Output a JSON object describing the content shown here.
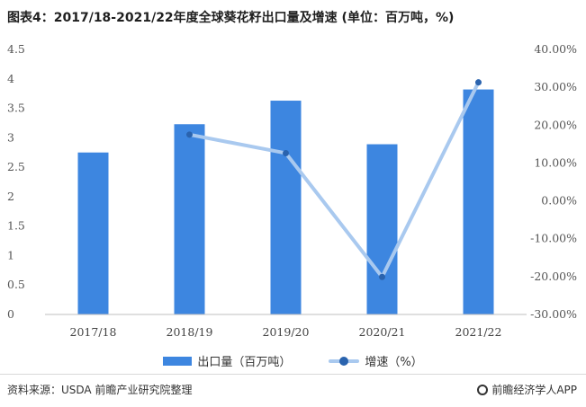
{
  "title": "图表4：2017/18-2021/22年度全球葵花籽出口量及增速 (单位：百万吨，%)",
  "chart_data": {
    "type": "bar",
    "categories": [
      "2017/18",
      "2018/19",
      "2019/20",
      "2020/21",
      "2021/22"
    ],
    "series": [
      {
        "name": "出口量（百万吨）",
        "type": "bar",
        "axis": "left",
        "color": "#3d86e0",
        "values": [
          2.75,
          3.23,
          3.63,
          2.89,
          3.82
        ]
      },
      {
        "name": "增速（%）",
        "type": "line",
        "axis": "right",
        "color": "#a9c9ef",
        "marker_color": "#2a63ae",
        "values": [
          null,
          17.5,
          12.6,
          -20.1,
          31.3
        ]
      }
    ],
    "y_left": {
      "ylim": [
        0,
        4.5
      ],
      "ticks": [
        0,
        0.5,
        1,
        1.5,
        2,
        2.5,
        3,
        3.5,
        4,
        4.5
      ],
      "tick_labels": [
        "0",
        "0.5",
        "1",
        "1.5",
        "2",
        "2.5",
        "3",
        "3.5",
        "4",
        "4.5"
      ]
    },
    "y_right": {
      "ylim": [
        -30,
        40
      ],
      "ticks": [
        -30,
        -20,
        -10,
        0,
        10,
        20,
        30,
        40
      ],
      "tick_labels": [
        "-30.00%",
        "-20.00%",
        "-10.00%",
        "0.00%",
        "10.00%",
        "20.00%",
        "30.00%",
        "40.00%"
      ]
    },
    "grid": false,
    "legend_position": "bottom"
  },
  "legend": {
    "bar_label": "出口量（百万吨）",
    "line_label": "增速（%）"
  },
  "footer": {
    "source": "资料来源：USDA 前瞻产业研究院整理",
    "brand": "前瞻经济学人APP"
  }
}
